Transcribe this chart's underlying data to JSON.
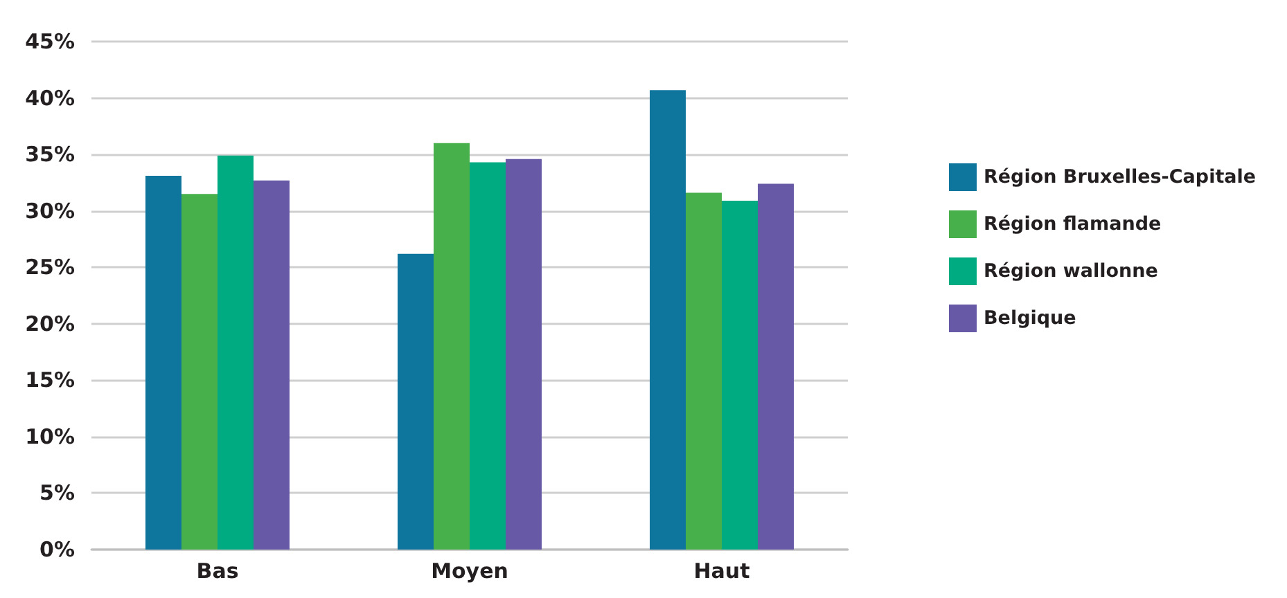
{
  "chart_data": {
    "type": "bar",
    "categories": [
      "Bas",
      "Moyen",
      "Haut"
    ],
    "series": [
      {
        "name": "Région Bruxelles-Capitale",
        "color": "#0e769c",
        "values": [
          33.1,
          26.2,
          40.7
        ]
      },
      {
        "name": "Région flamande",
        "color": "#47b04b",
        "values": [
          31.5,
          36.0,
          31.6
        ]
      },
      {
        "name": "Région wallonne",
        "color": "#00ab82",
        "values": [
          34.9,
          34.3,
          30.9
        ]
      },
      {
        "name": "Belgique",
        "color": "#6759a6",
        "values": [
          32.7,
          34.6,
          32.4
        ]
      }
    ],
    "ylim": [
      0,
      45
    ],
    "yticks": [
      {
        "value": 0,
        "label": "0%"
      },
      {
        "value": 5,
        "label": "5%"
      },
      {
        "value": 10,
        "label": "10%"
      },
      {
        "value": 15,
        "label": "15%"
      },
      {
        "value": 20,
        "label": "20%"
      },
      {
        "value": 25,
        "label": "25%"
      },
      {
        "value": 30,
        "label": "30%"
      },
      {
        "value": 35,
        "label": "35%"
      },
      {
        "value": 40,
        "label": "40%"
      },
      {
        "value": 45,
        "label": "45%"
      }
    ],
    "grid": "y",
    "legend": "right"
  }
}
